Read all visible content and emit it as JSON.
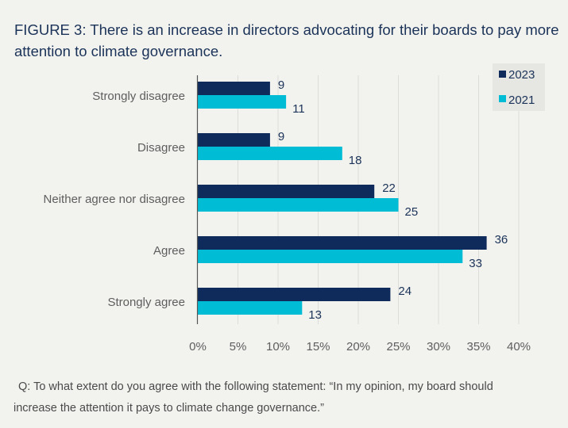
{
  "title": "FIGURE 3: There is an increase in directors advocating for their boards to pay more attention to climate governance.",
  "note_line1": "Q: To what extent do you agree with the following statement: “In my opinion, my board should",
  "note_line2": "increase the attention it pays to climate change governance.”",
  "colors": {
    "2023": "#0f2b5b",
    "2021": "#00bcd4",
    "background": "#f2f2ef",
    "legend_bg": "#e6e6e3",
    "grid": "#dcdcd8"
  },
  "chart_data": {
    "type": "bar",
    "orientation": "horizontal",
    "title": "FIGURE 3: There is an increase in directors advocating for their boards to pay more attention to climate governance.",
    "categories": [
      "Strongly disagree",
      "Disagree",
      "Neither agree nor disagree",
      "Agree",
      "Strongly agree"
    ],
    "series": [
      {
        "name": "2023",
        "values": [
          9,
          9,
          22,
          36,
          24
        ]
      },
      {
        "name": "2021",
        "values": [
          11,
          18,
          25,
          33,
          13
        ]
      }
    ],
    "xlabel": "",
    "ylabel": "",
    "xlim": [
      0,
      40
    ],
    "xticks": [
      "0%",
      "5%",
      "10%",
      "15%",
      "20%",
      "25%",
      "30%",
      "35%",
      "40%"
    ],
    "grid": true,
    "legend": "top-right"
  }
}
